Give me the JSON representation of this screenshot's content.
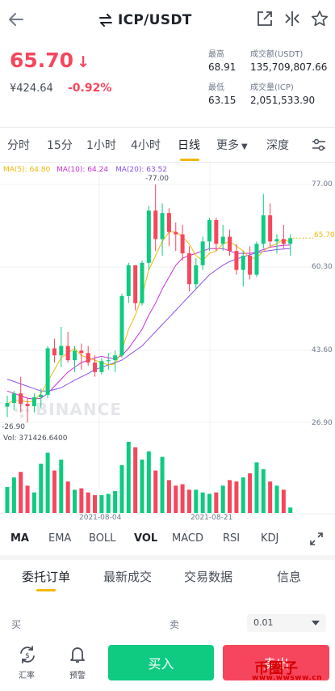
{
  "header": {
    "pair": "ICP/USDT",
    "icons": [
      "back-arrow-icon",
      "swap-icon",
      "external-link-icon",
      "compare-icon",
      "star-icon"
    ]
  },
  "price": {
    "last": "65.70",
    "cny": "¥424.64",
    "change": "-0.92%",
    "color": "#f6465d"
  },
  "stats": {
    "high_label": "最高",
    "high_value": "68.91",
    "turnover_label": "成交额(USDT)",
    "turnover_value": "135,709,807.66",
    "low_label": "最低",
    "low_value": "63.15",
    "volume_label": "成交量(ICP)",
    "volume_value": "2,051,533.90"
  },
  "timeframes": [
    "分时",
    "15分",
    "1小时",
    "4小时",
    "日线",
    "更多",
    "深度"
  ],
  "timeframe_active": "日线",
  "ma_legend": {
    "ma5": "MA(5): 64.80",
    "ma10": "MA(10): 64.24",
    "ma20": "MA(20): 63.52",
    "ma5_color": "#f0b90b",
    "ma10_color": "#c932d6",
    "ma20_color": "#8b52e8"
  },
  "chart_labels": {
    "y_ticks": [
      "77.00",
      "60.30",
      "43.60",
      "26.90"
    ],
    "high_marker": "77.00",
    "low_marker": "26.90",
    "last_marker": "65.70",
    "watermark": "BINANCE",
    "vol_legend": "Vol: 371426.6400",
    "x_dates": [
      "2021-08-04",
      "2021-08-21"
    ]
  },
  "chart_data": {
    "type": "candlestick",
    "ylim": [
      26.9,
      77.0
    ],
    "up_color": "#0ecb81",
    "down_color": "#f6465d",
    "candles": [
      {
        "o": 30.2,
        "h": 32.5,
        "l": 28.0,
        "c": 31.0
      },
      {
        "o": 31.0,
        "h": 33.5,
        "l": 29.5,
        "c": 33.0
      },
      {
        "o": 33.0,
        "h": 36.5,
        "l": 29.0,
        "c": 30.8
      },
      {
        "o": 30.8,
        "h": 32.0,
        "l": 26.9,
        "c": 30.3
      },
      {
        "o": 30.3,
        "h": 33.0,
        "l": 29.0,
        "c": 32.2
      },
      {
        "o": 32.2,
        "h": 34.0,
        "l": 30.0,
        "c": 32.7
      },
      {
        "o": 32.7,
        "h": 43.0,
        "l": 32.0,
        "c": 42.5
      },
      {
        "o": 42.5,
        "h": 44.5,
        "l": 39.5,
        "c": 41.0
      },
      {
        "o": 41.0,
        "h": 47.0,
        "l": 38.5,
        "c": 43.0
      },
      {
        "o": 43.0,
        "h": 46.0,
        "l": 39.5,
        "c": 40.0
      },
      {
        "o": 40.0,
        "h": 43.0,
        "l": 37.5,
        "c": 42.0
      },
      {
        "o": 42.0,
        "h": 43.5,
        "l": 38.0,
        "c": 41.5
      },
      {
        "o": 41.5,
        "h": 43.0,
        "l": 38.8,
        "c": 39.5
      },
      {
        "o": 39.5,
        "h": 41.0,
        "l": 36.5,
        "c": 37.5
      },
      {
        "o": 37.5,
        "h": 40.5,
        "l": 37.0,
        "c": 39.8
      },
      {
        "o": 39.8,
        "h": 41.5,
        "l": 38.0,
        "c": 40.0
      },
      {
        "o": 40.0,
        "h": 42.0,
        "l": 37.5,
        "c": 41.0
      },
      {
        "o": 41.0,
        "h": 54.0,
        "l": 40.5,
        "c": 53.5
      },
      {
        "o": 53.5,
        "h": 60.5,
        "l": 52.0,
        "c": 60.0
      },
      {
        "o": 60.0,
        "h": 60.0,
        "l": 50.5,
        "c": 52.0
      },
      {
        "o": 52.0,
        "h": 61.0,
        "l": 51.5,
        "c": 60.5
      },
      {
        "o": 60.5,
        "h": 72.5,
        "l": 59.0,
        "c": 71.5
      },
      {
        "o": 71.5,
        "h": 77.0,
        "l": 63.0,
        "c": 65.5
      },
      {
        "o": 65.5,
        "h": 73.0,
        "l": 62.0,
        "c": 71.0
      },
      {
        "o": 71.0,
        "h": 72.0,
        "l": 64.0,
        "c": 67.0
      },
      {
        "o": 67.0,
        "h": 69.0,
        "l": 63.0,
        "c": 66.5
      },
      {
        "o": 66.5,
        "h": 68.5,
        "l": 61.0,
        "c": 62.5
      },
      {
        "o": 62.5,
        "h": 64.0,
        "l": 54.5,
        "c": 56.0
      },
      {
        "o": 56.0,
        "h": 61.5,
        "l": 55.0,
        "c": 60.0
      },
      {
        "o": 60.0,
        "h": 66.0,
        "l": 59.0,
        "c": 65.0
      },
      {
        "o": 65.0,
        "h": 70.0,
        "l": 63.0,
        "c": 69.5
      },
      {
        "o": 69.5,
        "h": 70.0,
        "l": 63.0,
        "c": 64.5
      },
      {
        "o": 64.5,
        "h": 68.5,
        "l": 63.0,
        "c": 66.0
      },
      {
        "o": 66.0,
        "h": 67.5,
        "l": 62.0,
        "c": 63.0
      },
      {
        "o": 63.0,
        "h": 64.5,
        "l": 58.0,
        "c": 59.0
      },
      {
        "o": 59.0,
        "h": 63.0,
        "l": 55.5,
        "c": 62.0
      },
      {
        "o": 62.0,
        "h": 64.0,
        "l": 57.0,
        "c": 58.0
      },
      {
        "o": 58.0,
        "h": 65.0,
        "l": 57.5,
        "c": 64.5
      },
      {
        "o": 64.5,
        "h": 75.0,
        "l": 63.5,
        "c": 70.5
      },
      {
        "o": 70.5,
        "h": 73.0,
        "l": 64.0,
        "c": 65.0
      },
      {
        "o": 65.0,
        "h": 66.5,
        "l": 62.5,
        "c": 65.5
      },
      {
        "o": 65.5,
        "h": 68.5,
        "l": 63.5,
        "c": 64.5
      },
      {
        "o": 64.5,
        "h": 66.5,
        "l": 62.0,
        "c": 65.7
      }
    ],
    "volumes": [
      38,
      52,
      60,
      40,
      30,
      72,
      88,
      62,
      78,
      46,
      34,
      36,
      30,
      26,
      26,
      28,
      32,
      70,
      104,
      96,
      78,
      90,
      62,
      82,
      48,
      40,
      42,
      34,
      34,
      30,
      28,
      30,
      40,
      48,
      46,
      52,
      58,
      74,
      64,
      46,
      40,
      34,
      8
    ],
    "ma5": [
      30.8,
      31.5,
      31.5,
      31.2,
      31.4,
      33.0,
      35.5,
      38.0,
      40.5,
      41.5,
      42.5,
      41.0,
      40.5,
      40.0,
      39.5,
      39.0,
      39.2,
      42.0,
      46.5,
      49.5,
      53.5,
      59.0,
      62.0,
      65.0,
      67.0,
      67.0,
      66.0,
      64.5,
      62.0,
      61.0,
      62.5,
      63.0,
      64.5,
      65.0,
      64.0,
      63.0,
      61.5,
      61.5,
      63.0,
      64.0,
      64.5,
      65.5,
      64.8
    ],
    "ma10": [
      33.5,
      33.0,
      32.5,
      32.0,
      31.8,
      32.0,
      33.0,
      34.5,
      36.0,
      37.5,
      38.5,
      39.5,
      40.0,
      40.5,
      40.8,
      40.5,
      40.3,
      41.0,
      42.5,
      44.5,
      46.5,
      49.5,
      52.0,
      55.0,
      57.5,
      60.0,
      61.5,
      62.0,
      62.5,
      63.0,
      63.5,
      63.5,
      63.5,
      63.0,
      62.5,
      62.5,
      62.5,
      62.8,
      63.3,
      63.8,
      64.0,
      64.2,
      64.24
    ],
    "ma20": [
      36.0,
      35.5,
      35.0,
      34.5,
      34.0,
      33.5,
      33.5,
      33.8,
      34.2,
      35.0,
      35.8,
      36.5,
      37.2,
      38.0,
      38.5,
      39.0,
      39.5,
      40.0,
      41.0,
      42.0,
      43.0,
      44.5,
      46.0,
      47.5,
      49.0,
      50.5,
      52.0,
      53.5,
      55.0,
      56.5,
      58.0,
      59.0,
      60.0,
      60.8,
      61.3,
      61.8,
      62.2,
      62.6,
      62.9,
      63.1,
      63.3,
      63.4,
      63.52
    ]
  },
  "indicators": [
    "MA",
    "EMA",
    "BOLL",
    "VOL",
    "MACD",
    "RSI",
    "KDJ"
  ],
  "order_tabs": [
    "委托订单",
    "最新成交",
    "交易数据",
    "信息"
  ],
  "book": {
    "buy_label": "买",
    "sell_label": "卖",
    "precision": "0.01"
  },
  "bottom": {
    "rate_label": "汇率",
    "alert_label": "预警",
    "buy": "买入",
    "sell": "卖出",
    "watermark": "币圈子",
    "watermark_url": "www.wwsww.cn"
  }
}
